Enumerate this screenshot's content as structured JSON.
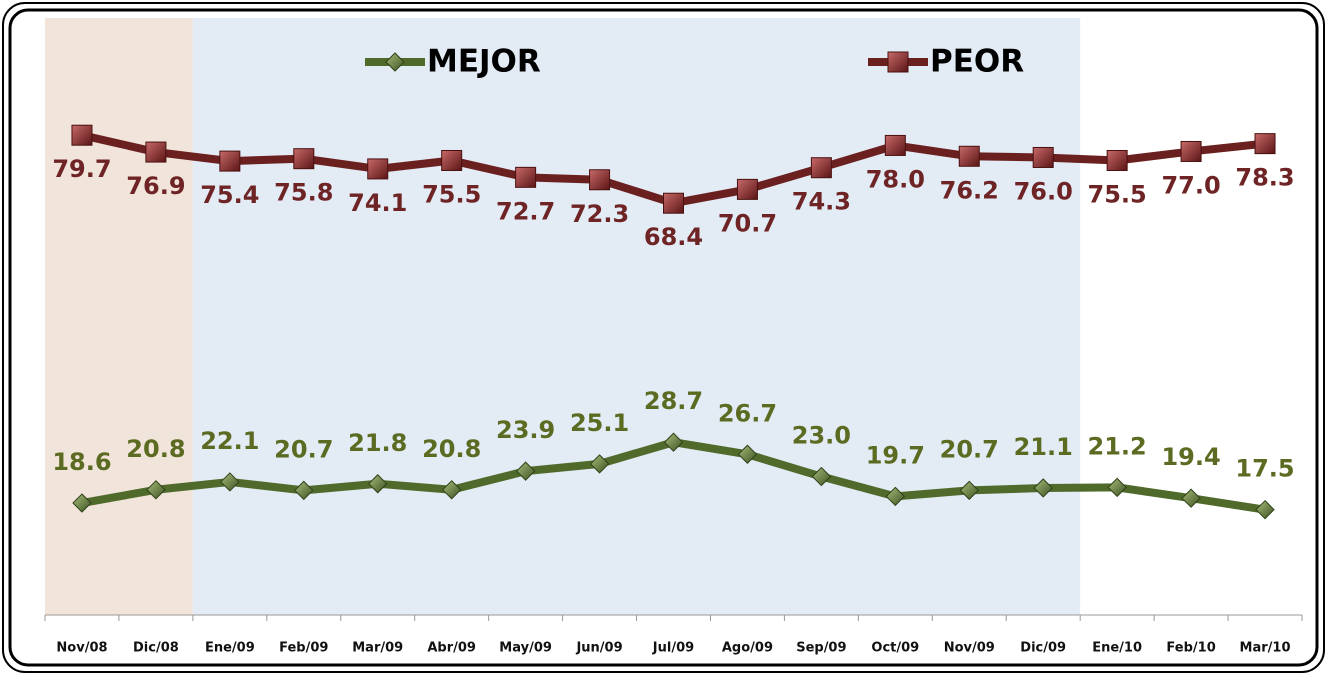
{
  "chart_data": {
    "type": "line",
    "categories": [
      "Nov/08",
      "Dic/08",
      "Ene/09",
      "Feb/09",
      "Mar/09",
      "Abr/09",
      "May/09",
      "Jun/09",
      "Jul/09",
      "Ago/09",
      "Sep/09",
      "Oct/09",
      "Nov/09",
      "Dic/09",
      "Ene/10",
      "Feb/10",
      "Mar/10"
    ],
    "series": [
      {
        "name": "MEJOR",
        "color": "#4f6a2b",
        "label_color": "#5b6b22",
        "marker": "diamond",
        "values": [
          18.6,
          20.8,
          22.1,
          20.7,
          21.8,
          20.8,
          23.9,
          25.1,
          28.7,
          26.7,
          23.0,
          19.7,
          20.7,
          21.1,
          21.2,
          19.4,
          17.5
        ],
        "value_labels": [
          "18.6",
          "20.8",
          "22.1",
          "20.7",
          "21.8",
          "20.8",
          "23.9",
          "25.1",
          "28.7",
          "26.7",
          "23.0",
          "19.7",
          "20.7",
          "21.1",
          "21.2",
          "19.4",
          "17.5"
        ]
      },
      {
        "name": "PEOR",
        "color": "#6b2020",
        "label_color": "#6e2424",
        "marker": "square",
        "values": [
          79.7,
          76.9,
          75.4,
          75.8,
          74.1,
          75.5,
          72.7,
          72.3,
          68.4,
          70.7,
          74.3,
          78.0,
          76.2,
          76.0,
          75.5,
          77.0,
          78.3
        ],
        "value_labels": [
          "79.7",
          "76.9",
          "75.4",
          "75.8",
          "74.1",
          "75.5",
          "72.7",
          "72.3",
          "68.4",
          "70.7",
          "74.3",
          "78.0",
          "76.2",
          "76.0",
          "75.5",
          "77.0",
          "78.3"
        ]
      }
    ],
    "ylim": [
      0,
      100
    ],
    "grid": false,
    "legend": "top"
  }
}
